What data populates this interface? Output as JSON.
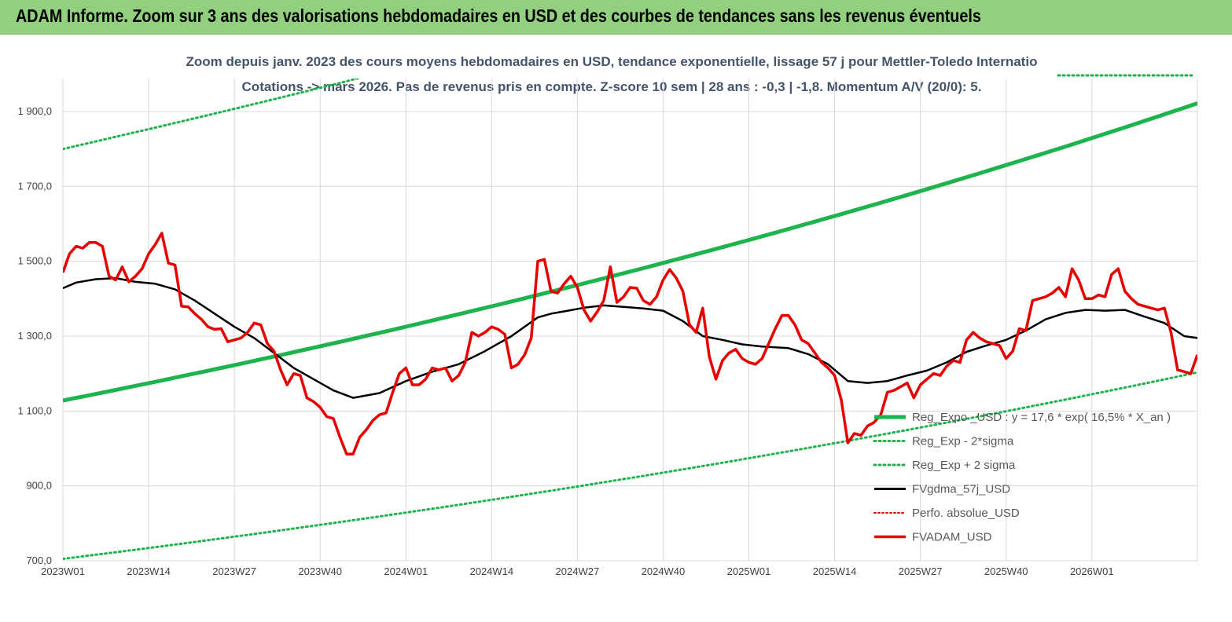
{
  "banner": {
    "title": "ADAM Informe. Zoom sur 3 ans des valorisations hebdomadaires en USD et des courbes de tendances sans les revenus éventuels"
  },
  "colors": {
    "banner_bg": "#92d07f",
    "reg_expo": "#1db34d",
    "sigma": "#1db34d",
    "fvgdma": "#000000",
    "perfo": "#e00000",
    "fvadam": "#e80000",
    "grid": "#d9d9d9",
    "subtitle": "#44546a"
  },
  "chart_data": {
    "type": "line",
    "title_line1": "Zoom depuis janv. 2023 des cours moyens hebdomadaires en USD, tendance exponentielle, lissage 57 j pour Mettler-Toledo Internatio",
    "title_line2": "Cotations -> mars 2026. Pas de revenus pris en compte. Z-score 10 sem | 28 ans : -0,3 | -1,8. Momentum A/V (20/0): 5.",
    "ylim": [
      700,
      1900
    ],
    "yticks": [
      "700,0",
      "900,0",
      "1 100,0",
      "1 300,0",
      "1 500,0",
      "1 700,0",
      "1 900,0"
    ],
    "ytick_values": [
      700,
      900,
      1100,
      1300,
      1500,
      1700,
      1900
    ],
    "xticks": [
      "2023W01",
      "2023W14",
      "2023W27",
      "2023W40",
      "2024W01",
      "2024W14",
      "2024W27",
      "2024W40",
      "2025W01",
      "2025W14",
      "2025W27",
      "2025W40",
      "2026W01"
    ],
    "xtick_weeks": [
      0,
      13,
      26,
      39,
      52,
      65,
      78,
      91,
      104,
      117,
      130,
      143,
      156
    ],
    "x_last_week": 172,
    "grid": true,
    "legend_position": "bottom-right",
    "legend": [
      "Reg_Expo _USD : y = 17,6 * exp( 16,5% *  X_an )",
      "Reg_Exp - 2*sigma",
      "Reg_Exp + 2 sigma",
      "FVgdma_57j_USD",
      "Perfo. absolue_USD",
      "FVADAM_USD"
    ],
    "series": [
      {
        "name": "Reg_Expo _USD : y = 17,6 * exp( 16,5% *  X_an )",
        "style": "solid-thick",
        "x": [
          0,
          172
        ],
        "values": [
          1128,
          1922
        ]
      },
      {
        "name": "Reg_Exp - 2*sigma",
        "style": "dotted",
        "x": [
          0,
          172
        ],
        "values": [
          705,
          1203
        ]
      },
      {
        "name": "Reg_Exp + 2 sigma",
        "style": "dotted",
        "x": [
          0,
          172
        ],
        "values": [
          1800,
          2640
        ]
      },
      {
        "name": "FVgdma_57j_USD",
        "style": "solid",
        "x": [
          0,
          2,
          5,
          8,
          11,
          14,
          17,
          20,
          23,
          26,
          29,
          32,
          35,
          38,
          41,
          44,
          48,
          52,
          56,
          60,
          64,
          68,
          72,
          74,
          76,
          79,
          82,
          85,
          88,
          91,
          94,
          97,
          100,
          103,
          106,
          110,
          113,
          116,
          119,
          122,
          125,
          128,
          131,
          134,
          137,
          140,
          143,
          146,
          149,
          152,
          155,
          158,
          161,
          164,
          167,
          170,
          172
        ],
        "values": [
          1428,
          1443,
          1452,
          1455,
          1445,
          1440,
          1425,
          1395,
          1360,
          1325,
          1295,
          1255,
          1215,
          1185,
          1155,
          1135,
          1148,
          1180,
          1205,
          1225,
          1260,
          1300,
          1350,
          1360,
          1366,
          1376,
          1382,
          1378,
          1374,
          1368,
          1340,
          1300,
          1290,
          1278,
          1272,
          1268,
          1252,
          1225,
          1180,
          1175,
          1180,
          1195,
          1208,
          1230,
          1258,
          1275,
          1290,
          1315,
          1345,
          1362,
          1370,
          1368,
          1370,
          1352,
          1335,
          1300,
          1295
        ]
      },
      {
        "name": "FVADAM_USD",
        "style": "solid-thick",
        "x": [
          0,
          1,
          2,
          3,
          4,
          5,
          6,
          7,
          8,
          9,
          10,
          11,
          12,
          13,
          14,
          15,
          16,
          17,
          18,
          19,
          20,
          21,
          22,
          23,
          24,
          25,
          26,
          27,
          28,
          29,
          30,
          31,
          32,
          33,
          34,
          35,
          36,
          37,
          38,
          39,
          40,
          41,
          42,
          43,
          44,
          45,
          46,
          47,
          48,
          49,
          50,
          51,
          52,
          53,
          54,
          55,
          56,
          57,
          58,
          59,
          60,
          61,
          62,
          63,
          64,
          65,
          66,
          67,
          68,
          69,
          70,
          71,
          72,
          73,
          74,
          75,
          76,
          77,
          78,
          79,
          80,
          81,
          82,
          83,
          84,
          85,
          86,
          87,
          88,
          89,
          90,
          91,
          92,
          93,
          94,
          95,
          96,
          97,
          98,
          99,
          100,
          101,
          102,
          103,
          104,
          105,
          106,
          107,
          108,
          109,
          110,
          111,
          112,
          113,
          114,
          115,
          116,
          117,
          118,
          119,
          120,
          121,
          122,
          123,
          124,
          125,
          126,
          127,
          128,
          129,
          130,
          131,
          132,
          133,
          134,
          135,
          136,
          137,
          138,
          139,
          140,
          141,
          142,
          143,
          144,
          145,
          146,
          147,
          148,
          149,
          150,
          151,
          152,
          153,
          154,
          155,
          156,
          157,
          158,
          159,
          160,
          161,
          162,
          163,
          164,
          165,
          166,
          167,
          168,
          169,
          170,
          171,
          172
        ],
        "values": [
          1470,
          1520,
          1540,
          1535,
          1550,
          1550,
          1540,
          1460,
          1450,
          1485,
          1445,
          1460,
          1480,
          1520,
          1545,
          1575,
          1495,
          1490,
          1380,
          1378,
          1360,
          1345,
          1325,
          1318,
          1320,
          1285,
          1290,
          1295,
          1310,
          1335,
          1330,
          1280,
          1260,
          1210,
          1170,
          1200,
          1195,
          1135,
          1125,
          1110,
          1085,
          1080,
          1030,
          985,
          985,
          1030,
          1050,
          1075,
          1090,
          1095,
          1150,
          1200,
          1215,
          1170,
          1170,
          1185,
          1215,
          1210,
          1215,
          1180,
          1195,
          1230,
          1310,
          1300,
          1310,
          1325,
          1318,
          1305,
          1215,
          1225,
          1250,
          1295,
          1500,
          1505,
          1420,
          1415,
          1440,
          1460,
          1430,
          1370,
          1340,
          1365,
          1395,
          1485,
          1390,
          1405,
          1430,
          1428,
          1395,
          1385,
          1405,
          1450,
          1478,
          1455,
          1420,
          1330,
          1310,
          1375,
          1245,
          1185,
          1235,
          1255,
          1265,
          1240,
          1230,
          1225,
          1240,
          1280,
          1320,
          1355,
          1355,
          1330,
          1290,
          1280,
          1255,
          1230,
          1215,
          1195,
          1130,
          1015,
          1040,
          1035,
          1060,
          1070,
          1090,
          1150,
          1155,
          1165,
          1175,
          1135,
          1170,
          1185,
          1200,
          1195,
          1220,
          1235,
          1230,
          1290,
          1310,
          1295,
          1285,
          1280,
          1275,
          1240,
          1260,
          1320,
          1315,
          1395,
          1400,
          1405,
          1415,
          1430,
          1405,
          1480,
          1450,
          1400,
          1400,
          1410,
          1405,
          1465,
          1480,
          1420,
          1400,
          1385,
          1380,
          1375,
          1370,
          1375,
          1310,
          1210,
          1205,
          1200,
          1250
        ]
      }
    ]
  }
}
